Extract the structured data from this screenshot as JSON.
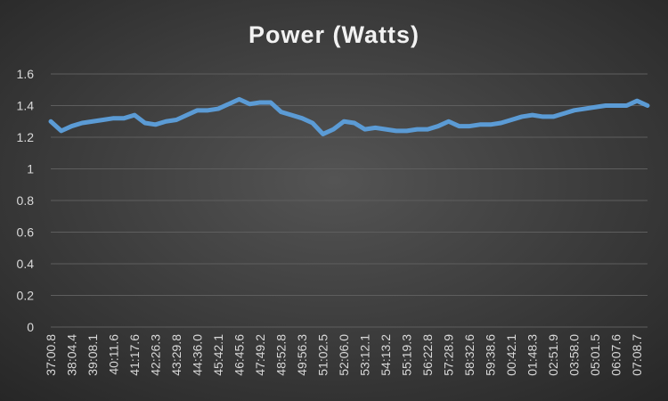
{
  "chart_data": {
    "type": "line",
    "title": "Power (Watts)",
    "categories": [
      "37:00.8",
      null,
      "38:04.4",
      null,
      "39:08.1",
      null,
      "40:11.6",
      null,
      "41:17.6",
      null,
      "42:26.3",
      null,
      "43:29.8",
      null,
      "44:36.0",
      null,
      "45:42.1",
      null,
      "46:45.6",
      null,
      "47:49.2",
      null,
      "48:52.8",
      null,
      "49:56.3",
      null,
      "51:02.5",
      null,
      "52:06.0",
      null,
      "53:12.1",
      null,
      "54:13.2",
      null,
      "55:19.3",
      null,
      "56:22.8",
      null,
      "57:28.9",
      null,
      "58:32.6",
      null,
      "59:38.6",
      null,
      "00:42.1",
      null,
      "01:48.3",
      null,
      "02:51.9",
      null,
      "03:58.0",
      null,
      "05:01.5",
      null,
      "06:07.6",
      null,
      "07:08.7",
      null
    ],
    "series": [
      {
        "name": "Power",
        "color": "#5b9bd5",
        "values": [
          1.3,
          1.24,
          1.27,
          1.29,
          1.3,
          1.31,
          1.32,
          1.32,
          1.34,
          1.29,
          1.28,
          1.3,
          1.31,
          1.34,
          1.37,
          1.37,
          1.38,
          1.41,
          1.44,
          1.41,
          1.42,
          1.42,
          1.36,
          1.34,
          1.32,
          1.29,
          1.22,
          1.25,
          1.3,
          1.29,
          1.25,
          1.26,
          1.25,
          1.24,
          1.24,
          1.25,
          1.25,
          1.27,
          1.3,
          1.27,
          1.27,
          1.28,
          1.28,
          1.29,
          1.31,
          1.33,
          1.34,
          1.33,
          1.33,
          1.35,
          1.37,
          1.38,
          1.39,
          1.4,
          1.4,
          1.4,
          1.43,
          1.4
        ]
      }
    ],
    "ylim": [
      0,
      1.6
    ],
    "yticks": [
      0,
      0.2,
      0.4,
      0.6,
      0.8,
      1,
      1.2,
      1.4,
      1.6
    ],
    "grid": true
  }
}
